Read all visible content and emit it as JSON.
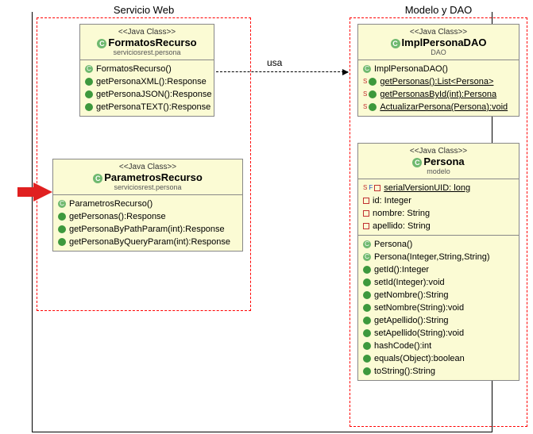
{
  "packages": {
    "web": {
      "label": "Servicio Web"
    },
    "modelo": {
      "label": "Modelo y DAO"
    }
  },
  "relation": {
    "label": "usa"
  },
  "classes": {
    "formatos": {
      "stereo": "<<Java Class>>",
      "name": "FormatosRecurso",
      "pkg": "serviciosrest.persona",
      "ops": [
        {
          "kind": "C",
          "text": "FormatosRecurso()"
        },
        {
          "kind": "pub",
          "text": "getPersonaXML():Response"
        },
        {
          "kind": "pub",
          "text": "getPersonaJSON():Response"
        },
        {
          "kind": "pub",
          "text": "getPersonaTEXT():Response"
        }
      ]
    },
    "parametros": {
      "stereo": "<<Java Class>>",
      "name": "ParametrosRecurso",
      "pkg": "serviciosrest.persona",
      "ops": [
        {
          "kind": "C",
          "text": "ParametrosRecurso()"
        },
        {
          "kind": "pub",
          "text": "getPersonas():Response"
        },
        {
          "kind": "pub",
          "text": "getPersonaByPathParam(int):Response"
        },
        {
          "kind": "pub",
          "text": "getPersonaByQueryParam(int):Response"
        }
      ]
    },
    "dao": {
      "stereo": "<<Java Class>>",
      "name": "ImplPersonaDAO",
      "pkg": "DAO",
      "ops": [
        {
          "kind": "C",
          "text": "ImplPersonaDAO()"
        },
        {
          "kind": "S",
          "text": "getPersonas():List<Persona>"
        },
        {
          "kind": "S",
          "text": "getPersonasById(int):Persona"
        },
        {
          "kind": "S",
          "text": "ActualizarPersona(Persona):void"
        }
      ]
    },
    "persona": {
      "stereo": "<<Java Class>>",
      "name": "Persona",
      "pkg": "modelo",
      "attrs": [
        {
          "kind": "SF",
          "text": "serialVersionUID: long"
        },
        {
          "kind": "priv",
          "text": "id: Integer"
        },
        {
          "kind": "priv",
          "text": "nombre: String"
        },
        {
          "kind": "priv",
          "text": "apellido: String"
        }
      ],
      "ops": [
        {
          "kind": "C",
          "text": "Persona()"
        },
        {
          "kind": "C",
          "text": "Persona(Integer,String,String)"
        },
        {
          "kind": "pub",
          "text": "getId():Integer"
        },
        {
          "kind": "pub",
          "text": "setId(Integer):void"
        },
        {
          "kind": "pub",
          "text": "getNombre():String"
        },
        {
          "kind": "pub",
          "text": "setNombre(String):void"
        },
        {
          "kind": "pub",
          "text": "getApellido():String"
        },
        {
          "kind": "pub",
          "text": "setApellido(String):void"
        },
        {
          "kind": "pub",
          "text": "hashCode():int"
        },
        {
          "kind": "pub",
          "text": "equals(Object):boolean"
        },
        {
          "kind": "pub",
          "text": "toString():String"
        }
      ]
    }
  }
}
